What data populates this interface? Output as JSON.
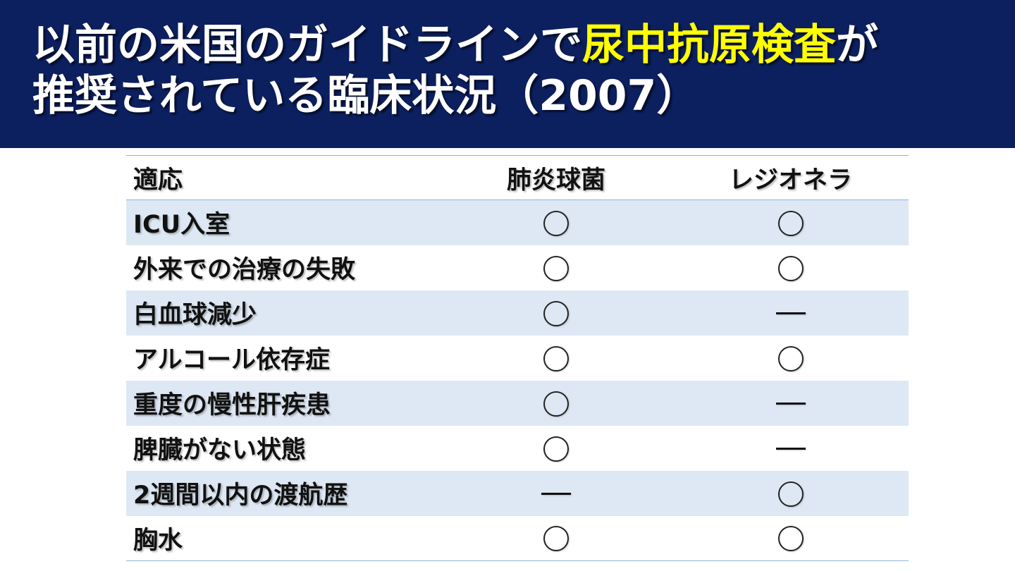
{
  "slide": {
    "title_part1": "以前の米国のガイドラインで",
    "title_highlight": "尿中抗原検査",
    "title_part2": "が",
    "title_line2": "推奨されている臨床状況（2007）",
    "colors": {
      "banner": "#0c1f5e",
      "highlight": "#ffff00",
      "row_shade": "#dee8f4",
      "rule": "#8db3d9"
    }
  },
  "table": {
    "headers": [
      "適応",
      "肺炎球菌",
      "レジオネラ"
    ],
    "legend_icons": {
      "yes": "circle-mark",
      "no": "dash-mark"
    },
    "rows": [
      {
        "indication": "ICU入室",
        "pneumococcus": "yes",
        "legionella": "yes"
      },
      {
        "indication": "外来での治療の失敗",
        "pneumococcus": "yes",
        "legionella": "yes"
      },
      {
        "indication": "白血球減少",
        "pneumococcus": "yes",
        "legionella": "no"
      },
      {
        "indication": "アルコール依存症",
        "pneumococcus": "yes",
        "legionella": "yes"
      },
      {
        "indication": "重度の慢性肝疾患",
        "pneumococcus": "yes",
        "legionella": "no"
      },
      {
        "indication": "脾臓がない状態",
        "pneumococcus": "yes",
        "legionella": "no"
      },
      {
        "indication": "2週間以内の渡航歴",
        "pneumococcus": "no",
        "legionella": "yes"
      },
      {
        "indication": "胸水",
        "pneumococcus": "yes",
        "legionella": "yes"
      }
    ]
  }
}
